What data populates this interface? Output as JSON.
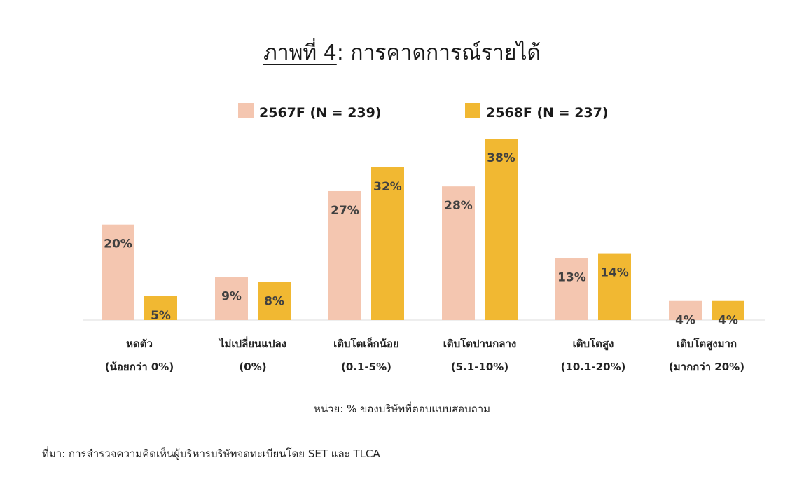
{
  "title": {
    "prefix": "ภาพที่ 4",
    "separator": ":",
    "text": " การคาดการณ์รายได้"
  },
  "colors": {
    "series_2567": "#F4C6B0",
    "series_2568": "#F1B832",
    "label_text": "#404040",
    "baseline": "#dddddd"
  },
  "chart_data": {
    "type": "bar",
    "title": "",
    "categories": [
      [
        "หดตัว",
        "(น้อยกว่า 0%)"
      ],
      [
        "ไม่เปลี่ยนแปลง",
        "(0%)"
      ],
      [
        "เติบโตเล็กน้อย",
        "(0.1-5%)"
      ],
      [
        "เติบโตปานกลาง",
        "(5.1-10%)"
      ],
      [
        "เติบโตสูง",
        "(10.1-20%)"
      ],
      [
        "เติบโตสูงมาก",
        "(มากกว่า 20%)"
      ]
    ],
    "series": [
      {
        "name": "2567F (N = 239)",
        "values": [
          20,
          9,
          27,
          28,
          13,
          4
        ]
      },
      {
        "name": "2568F (N = 237)",
        "values": [
          5,
          8,
          32,
          38,
          14,
          4
        ]
      }
    ],
    "value_suffix": "%",
    "ylim": [
      0,
      38
    ],
    "grid": false,
    "legend_position": "top-center"
  },
  "unit_note": "หน่วย:  % ของบริษัทที่ตอบแบบสอบถาม",
  "source_note": "ที่มา: การสำรวจความคิดเห็นผู้บริหารบริษัทจดทะเบียนโดย SET และ TLCA"
}
